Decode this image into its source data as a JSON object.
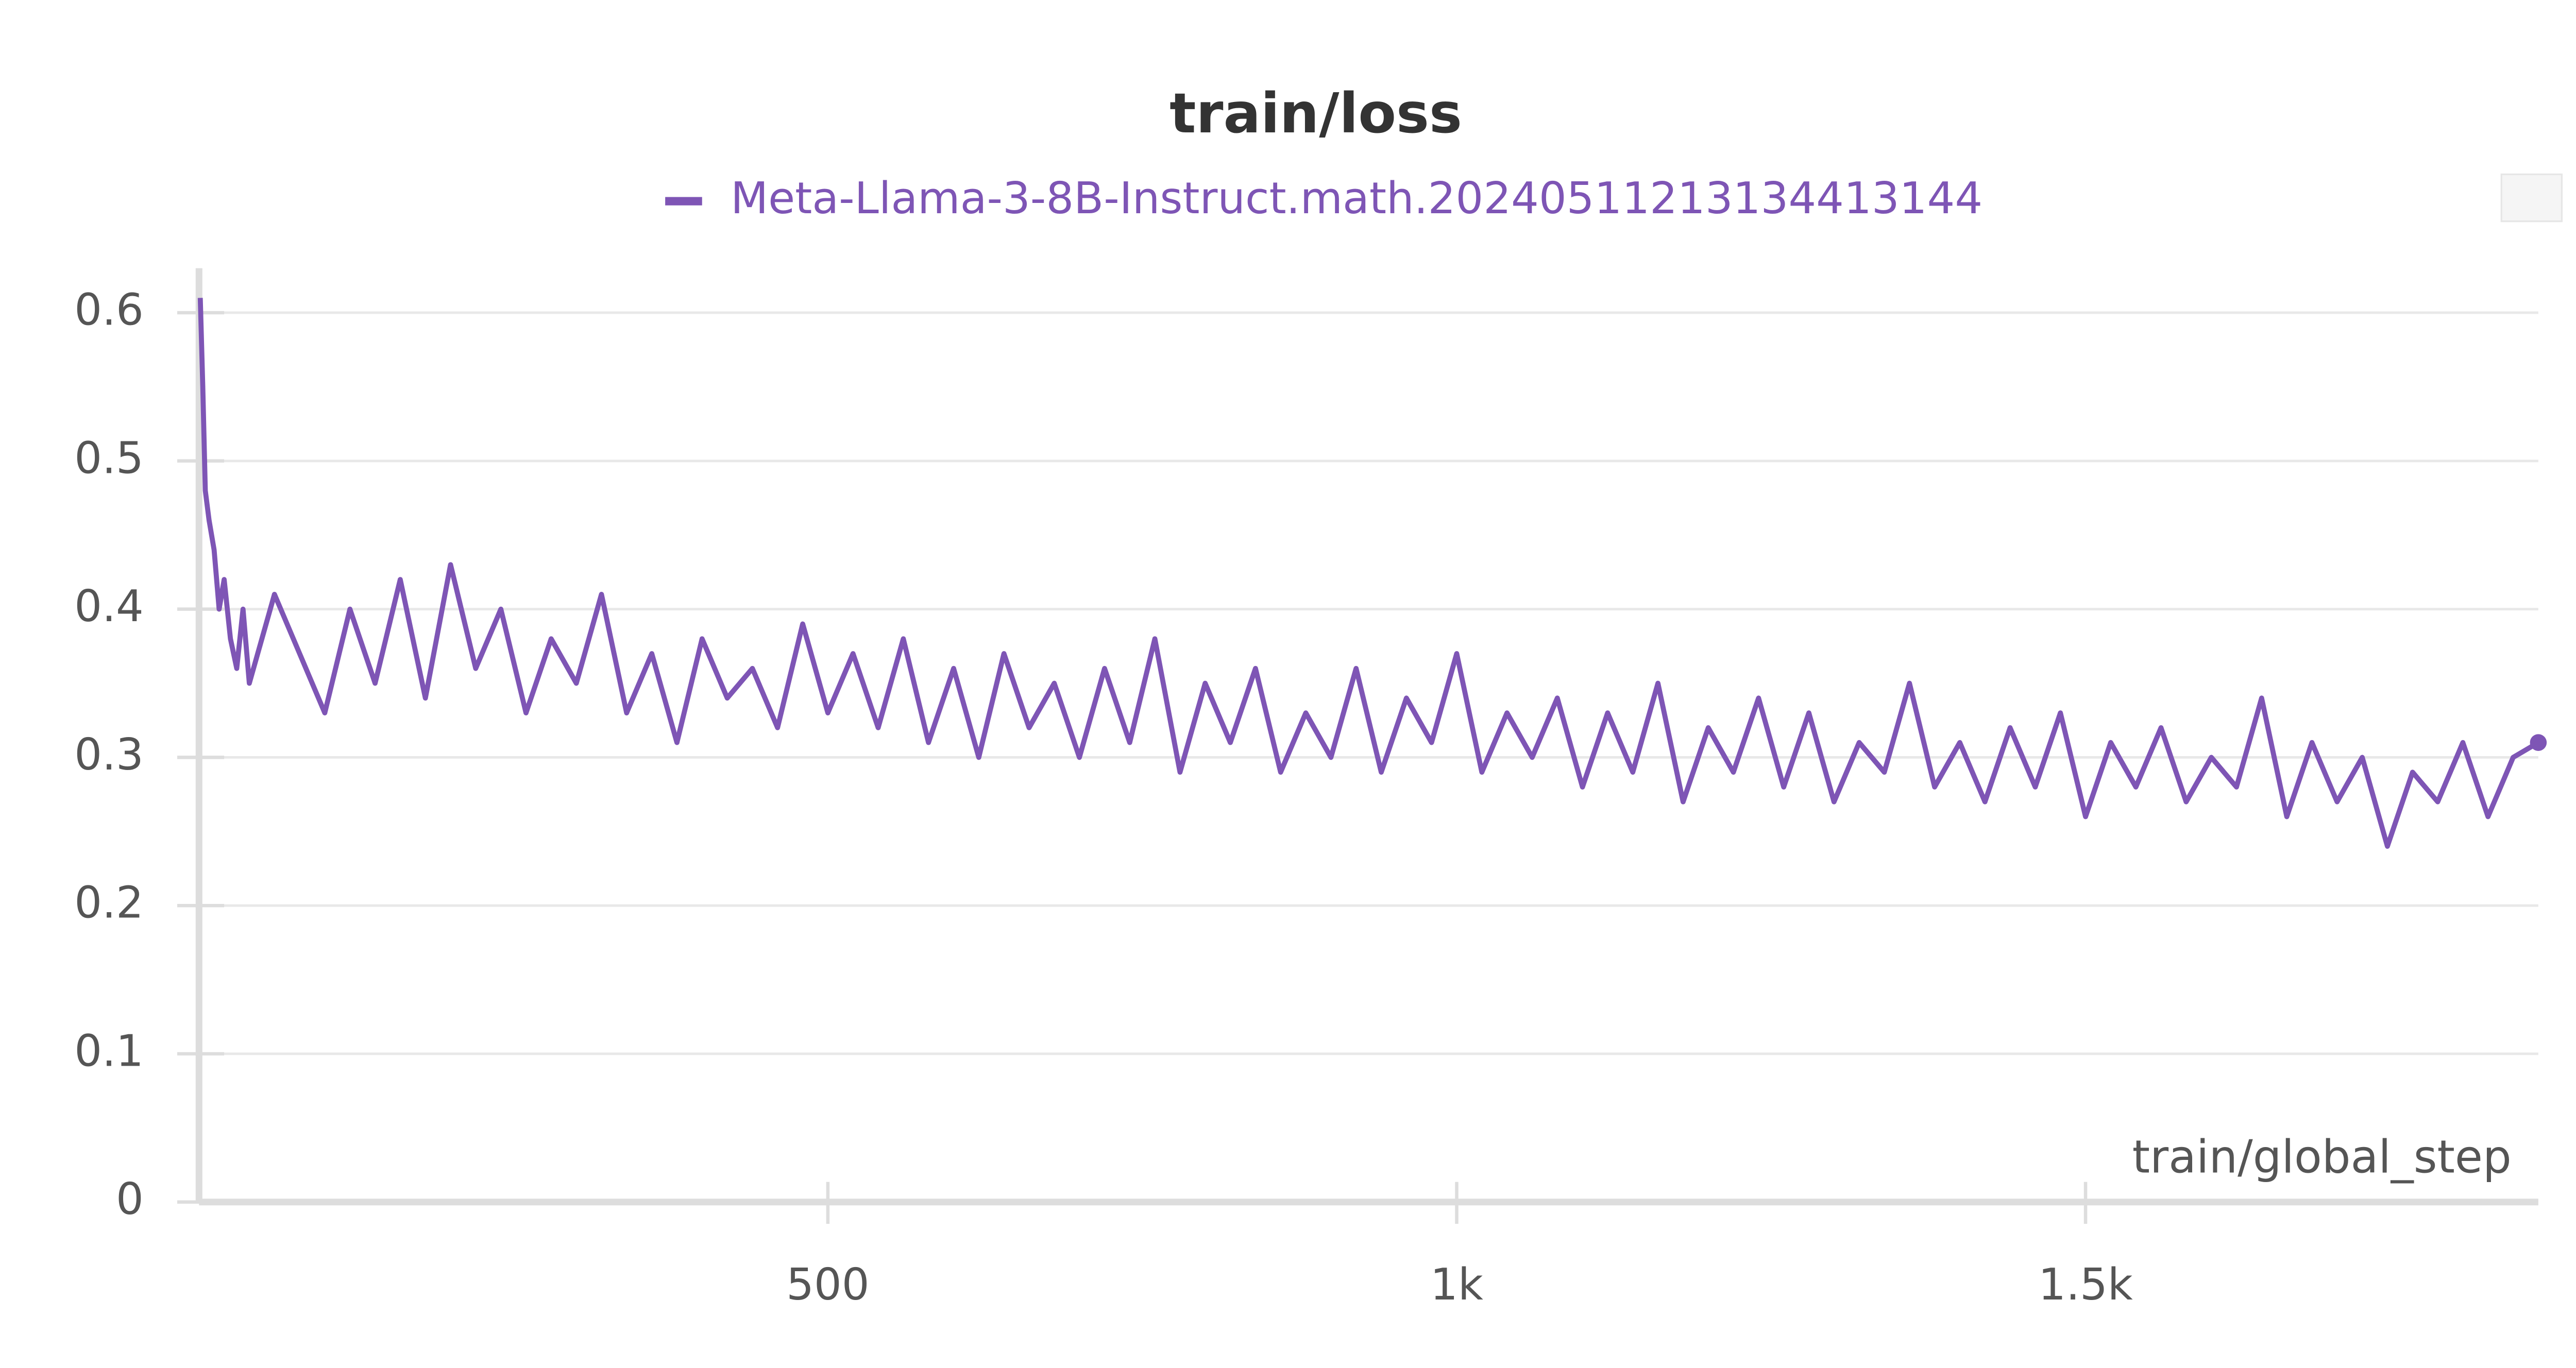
{
  "chart_data": {
    "type": "line",
    "title": "train/loss",
    "x_label": "train/global_step",
    "x": [
      1,
      3,
      5,
      8,
      12,
      16,
      20,
      25,
      30,
      35,
      40,
      60,
      80,
      100,
      120,
      140,
      160,
      180,
      200,
      220,
      240,
      260,
      280,
      300,
      320,
      340,
      360,
      380,
      400,
      420,
      440,
      460,
      480,
      500,
      520,
      540,
      560,
      580,
      600,
      620,
      640,
      660,
      680,
      700,
      720,
      740,
      760,
      780,
      800,
      820,
      840,
      860,
      880,
      900,
      920,
      940,
      960,
      980,
      1000,
      1020,
      1040,
      1060,
      1080,
      1100,
      1120,
      1140,
      1160,
      1180,
      1200,
      1220,
      1240,
      1260,
      1280,
      1300,
      1320,
      1340,
      1360,
      1380,
      1400,
      1420,
      1440,
      1460,
      1480,
      1500,
      1520,
      1540,
      1560,
      1580,
      1600,
      1620,
      1640,
      1660,
      1680,
      1700,
      1720,
      1740,
      1760,
      1780,
      1800,
      1820,
      1840,
      1860
    ],
    "series": [
      {
        "name": "Meta-Llama-3-8B-Instruct.math.20240511213134413144",
        "color": "#7e55b5",
        "values": [
          0.61,
          0.55,
          0.48,
          0.46,
          0.44,
          0.4,
          0.42,
          0.38,
          0.36,
          0.4,
          0.35,
          0.41,
          0.37,
          0.33,
          0.4,
          0.35,
          0.42,
          0.34,
          0.43,
          0.36,
          0.4,
          0.33,
          0.38,
          0.35,
          0.41,
          0.33,
          0.37,
          0.31,
          0.38,
          0.34,
          0.36,
          0.32,
          0.39,
          0.33,
          0.37,
          0.32,
          0.38,
          0.31,
          0.36,
          0.3,
          0.37,
          0.32,
          0.35,
          0.3,
          0.36,
          0.31,
          0.38,
          0.29,
          0.35,
          0.31,
          0.36,
          0.29,
          0.33,
          0.3,
          0.36,
          0.29,
          0.34,
          0.31,
          0.37,
          0.29,
          0.33,
          0.3,
          0.34,
          0.28,
          0.33,
          0.29,
          0.35,
          0.27,
          0.32,
          0.29,
          0.34,
          0.28,
          0.33,
          0.27,
          0.31,
          0.29,
          0.35,
          0.28,
          0.31,
          0.27,
          0.32,
          0.28,
          0.33,
          0.26,
          0.31,
          0.28,
          0.32,
          0.27,
          0.3,
          0.28,
          0.34,
          0.26,
          0.31,
          0.27,
          0.3,
          0.24,
          0.29,
          0.27,
          0.31,
          0.26,
          0.3,
          0.31
        ]
      }
    ],
    "xlim": [
      0,
      1860
    ],
    "ylim": [
      0,
      0.63
    ],
    "xticks": [
      500,
      {
        "value": 1000,
        "label": "1k"
      },
      {
        "value": 1500,
        "label": "1.5k"
      }
    ],
    "yticks": [
      0,
      0.1,
      0.2,
      0.3,
      0.4,
      0.5,
      0.6
    ],
    "grid": true
  }
}
